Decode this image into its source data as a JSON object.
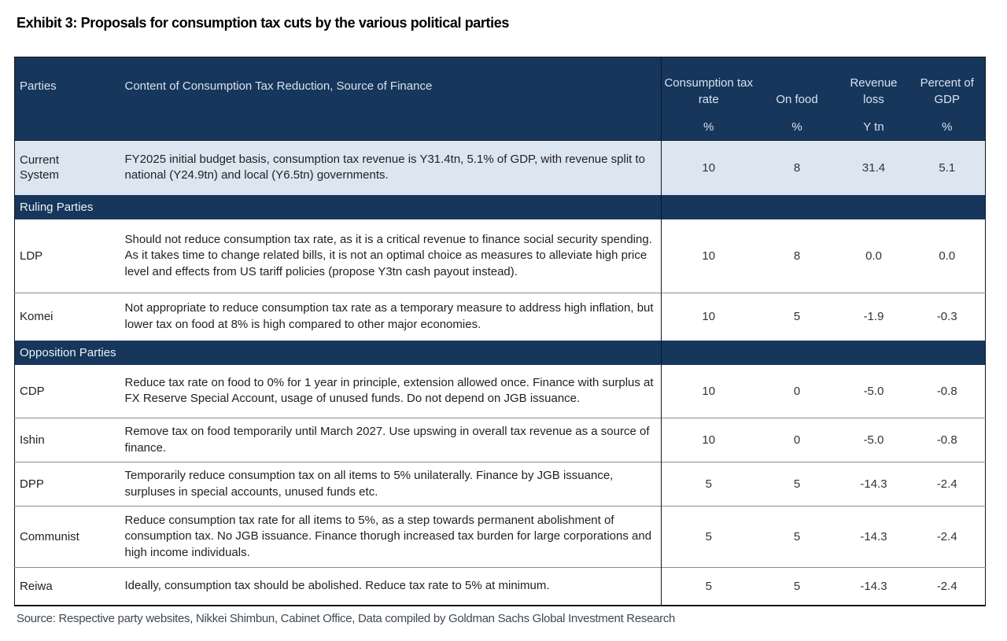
{
  "exhibit": {
    "title": "Exhibit 3: Proposals for consumption tax cuts by the various political parties"
  },
  "table": {
    "columns": {
      "parties": "Parties",
      "content": "Content of Consumption Tax Reduction, Source of Finance",
      "numeric": [
        {
          "label": "Consumption tax rate",
          "unit": "%"
        },
        {
          "label": "On food",
          "unit": "%"
        },
        {
          "label": "Revenue loss",
          "unit": "Y tn"
        },
        {
          "label": "Percent of GDP",
          "unit": "%"
        }
      ]
    },
    "rows": [
      {
        "type": "data",
        "highlight": true,
        "party": "Current System",
        "content": "FY2025 initial budget basis, consumption tax revenue is Y31.4tn, 5.1% of GDP, with revenue split to national (Y24.9tn) and local (Y6.5tn) governments.",
        "values": [
          "10",
          "8",
          "31.4",
          "5.1"
        ]
      },
      {
        "type": "section",
        "label": "Ruling Parties"
      },
      {
        "type": "data",
        "party": "LDP",
        "content": "Should not reduce consumption tax rate, as it is a critical revenue to finance social security spending. As it takes time to change related bills, it is not an optimal choice as measures to alleviate high price level and effects from US tariff policies (propose Y3tn cash payout instead).",
        "values": [
          "10",
          "8",
          "0.0",
          "0.0"
        ]
      },
      {
        "type": "data",
        "party": "Komei",
        "content": "Not appropriate to reduce consumption tax rate as a temporary measure to address high inflation, but lower tax on food at 8% is high compared to other major economies.",
        "values": [
          "10",
          "5",
          "-1.9",
          "-0.3"
        ]
      },
      {
        "type": "section",
        "label": "Opposition Parties"
      },
      {
        "type": "data",
        "party": "CDP",
        "content": "Reduce tax rate on food to 0% for 1 year in principle, extension allowed once. Finance with surplus at FX Reserve Special Account, usage of unused funds. Do not depend on JGB issuance.",
        "values": [
          "10",
          "0",
          "-5.0",
          "-0.8"
        ]
      },
      {
        "type": "data",
        "party": "Ishin",
        "content": "Remove tax on food temporarily until March 2027. Use upswing in overall tax revenue as a source of finance.",
        "values": [
          "10",
          "0",
          "-5.0",
          "-0.8"
        ]
      },
      {
        "type": "data",
        "party": "DPP",
        "content": "Temporarily reduce consumption tax on all items to 5% unilaterally. Finance by JGB issuance, surpluses in special accounts, unused funds etc.",
        "values": [
          "5",
          "5",
          "-14.3",
          "-2.4"
        ]
      },
      {
        "type": "data",
        "party": "Communist",
        "content": "Reduce consumption tax rate for all items to 5%, as a step towards permanent abolishment of consumption tax. No JGB issuance. Finance thorugh increased tax burden for large corporations and high income individuals.",
        "values": [
          "5",
          "5",
          "-14.3",
          "-2.4"
        ]
      },
      {
        "type": "data",
        "party": "Reiwa",
        "content": "Ideally, consumption tax should be abolished. Reduce tax rate to 5% at minimum.",
        "values": [
          "5",
          "5",
          "-14.3",
          "-2.4"
        ]
      }
    ]
  },
  "source": "Source: Respective party websites, Nikkei Shimbun, Cabinet Office, Data compiled by Goldman Sachs Global Investment Research",
  "colors": {
    "header_bg": "#16365c",
    "header_text": "#d9e2ee",
    "section_bg": "#16365c",
    "section_text": "#eef1f5",
    "highlight_row_bg": "#dce6f1",
    "row_separator": "#8c8c8c",
    "table_border": "#15171a",
    "body_text": "#222222",
    "source_text": "#3f4a54"
  }
}
